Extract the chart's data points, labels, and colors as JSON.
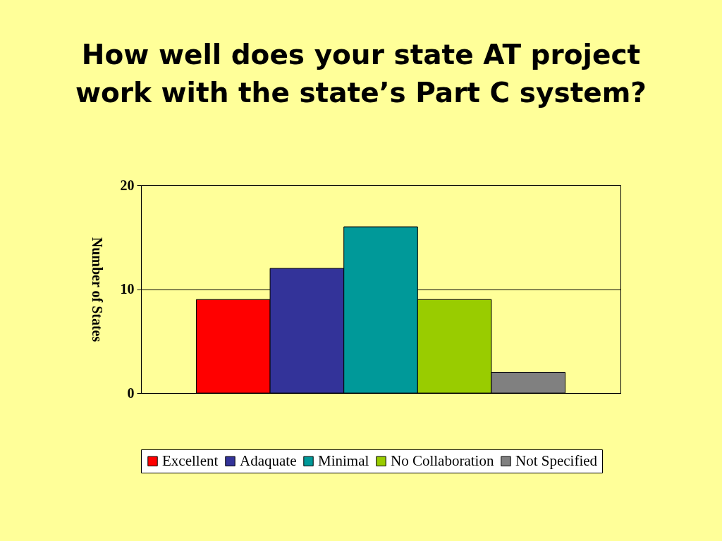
{
  "chart_data": {
    "type": "bar",
    "title": "How well does your state AT project work with the state’s Part C system?",
    "ylabel": "Number of States",
    "categories": [
      null
    ],
    "series": [
      {
        "name": "Excellent",
        "color": "#ff0000",
        "values": [
          9
        ]
      },
      {
        "name": "Adaquate",
        "color": "#333399",
        "values": [
          12
        ]
      },
      {
        "name": "Minimal",
        "color": "#009999",
        "values": [
          16
        ]
      },
      {
        "name": "No Collaboration",
        "color": "#99cc00",
        "values": [
          9
        ]
      },
      {
        "name": "Not Specified",
        "color": "#808080",
        "values": [
          2
        ]
      }
    ],
    "ylim": [
      0,
      20
    ],
    "yticks": [
      0,
      10,
      20
    ],
    "grid": "y",
    "legend": "bottom"
  }
}
